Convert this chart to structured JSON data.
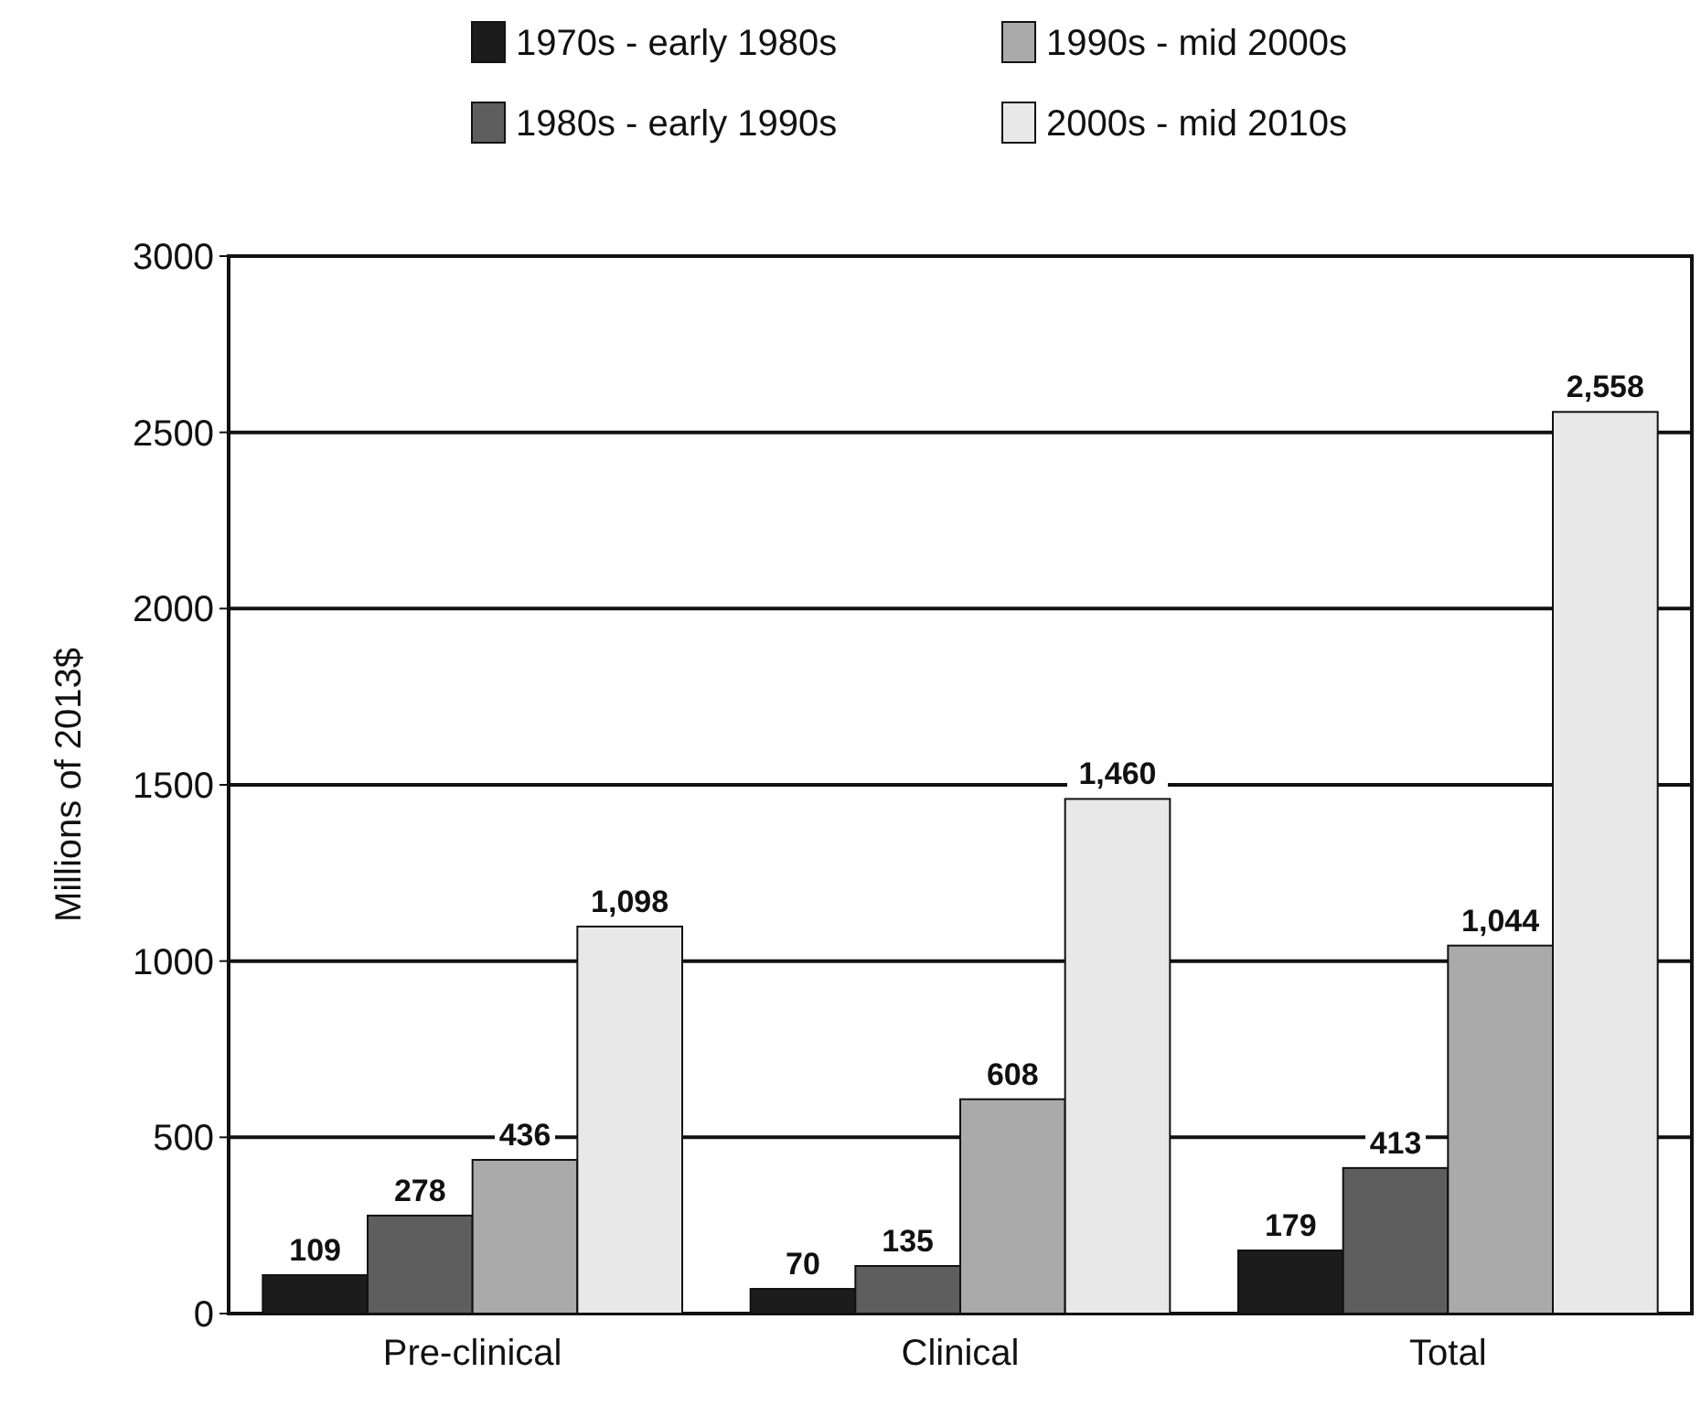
{
  "chart_data": {
    "type": "bar",
    "ylabel": "Millions of 2013$",
    "categories": [
      "Pre-clinical",
      "Clinical",
      "Total"
    ],
    "series": [
      {
        "name": "1970s - early 1980s",
        "color": "#1c1c1c",
        "values": [
          109,
          70,
          179
        ],
        "value_labels": [
          "109",
          "70",
          "179"
        ]
      },
      {
        "name": "1980s - early 1990s",
        "color": "#5e5e5e",
        "values": [
          278,
          135,
          413
        ],
        "value_labels": [
          "278",
          "135",
          "413"
        ]
      },
      {
        "name": "1990s - mid 2000s",
        "color": "#aaaaaa",
        "values": [
          436,
          608,
          1044
        ],
        "value_labels": [
          "436",
          "608",
          "1,044"
        ]
      },
      {
        "name": "2000s - mid 2010s",
        "color": "#e8e8e8",
        "values": [
          1098,
          1460,
          2558
        ],
        "value_labels": [
          "1,098",
          "1,460",
          "2,558"
        ]
      }
    ],
    "ylim": [
      0,
      3000
    ],
    "yticks": [
      0,
      500,
      1000,
      1500,
      2000,
      2500,
      3000
    ],
    "grid": "y",
    "legend": "top"
  }
}
